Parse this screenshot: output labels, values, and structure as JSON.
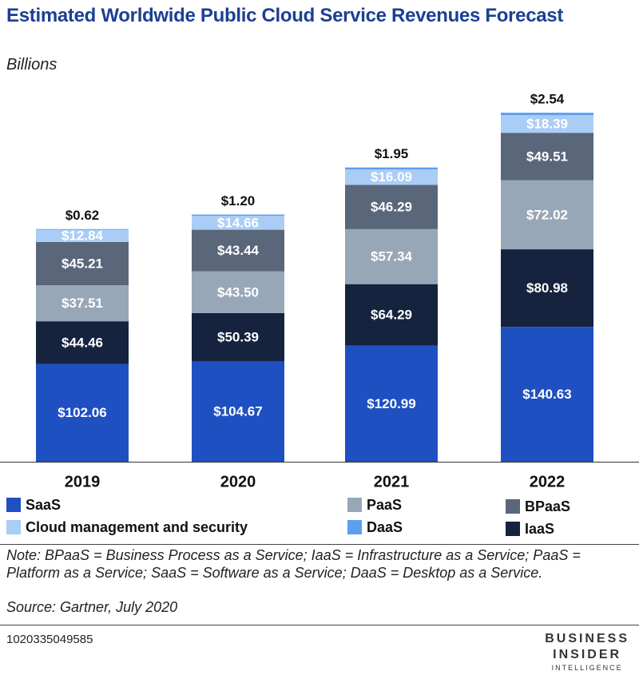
{
  "chart_data": {
    "type": "stacked_bar",
    "title": "Estimated Worldwide Public Cloud Service Revenues Forecast",
    "subtitle": "Billions",
    "categories": [
      "2019",
      "2020",
      "2021",
      "2022"
    ],
    "series": [
      {
        "name": "SaaS",
        "color": "#1f50c2",
        "values": [
          102.06,
          104.67,
          120.99,
          140.63
        ],
        "value_labels": [
          "$102.06",
          "$104.67",
          "$120.99",
          "$140.63"
        ]
      },
      {
        "name": "IaaS",
        "color": "#15233f",
        "values": [
          44.46,
          50.39,
          64.29,
          80.98
        ],
        "value_labels": [
          "$44.46",
          "$50.39",
          "$64.29",
          "$80.98"
        ]
      },
      {
        "name": "PaaS",
        "color": "#98a7b8",
        "values": [
          37.51,
          43.5,
          57.34,
          72.02
        ],
        "value_labels": [
          "$37.51",
          "$43.50",
          "$57.34",
          "$72.02"
        ]
      },
      {
        "name": "BPaaS",
        "color": "#5a6679",
        "values": [
          45.21,
          43.44,
          46.29,
          49.51
        ],
        "value_labels": [
          "$45.21",
          "$43.44",
          "$46.29",
          "$49.51"
        ]
      },
      {
        "name": "Cloud management and security",
        "color": "#a9cdf6",
        "values": [
          12.84,
          14.66,
          16.09,
          18.39
        ],
        "value_labels": [
          "$12.84",
          "$14.66",
          "$16.09",
          "$18.39"
        ]
      },
      {
        "name": "DaaS",
        "color": "#5c9ef0",
        "values": [
          0.62,
          1.2,
          1.95,
          2.54
        ],
        "value_labels": [
          "$0.62",
          "$1.20",
          "$1.95",
          "$2.54"
        ]
      }
    ],
    "note": "Note: BPaaS = Business Process as a Service; IaaS = Infrastructure as a Service; PaaS = Platform as a Service; SaaS = Software as a Service; DaaS = Desktop as a Service.",
    "source": "Source: Gartner, July 2020",
    "chart_id": "1020335049585",
    "logo": [
      "BUSINESS",
      "INSIDER",
      "INTELLIGENCE"
    ]
  }
}
